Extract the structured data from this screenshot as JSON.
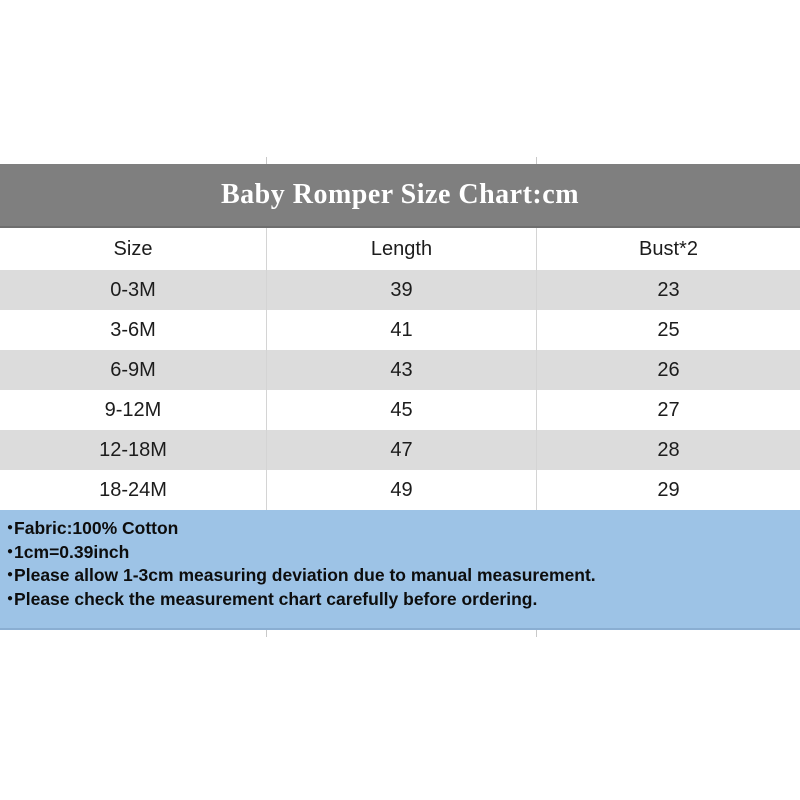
{
  "title": "Baby Romper Size Chart:cm",
  "table": {
    "columns": [
      "Size",
      "Length",
      "Bust*2"
    ],
    "rows": [
      [
        "0-3M",
        "39",
        "23"
      ],
      [
        "3-6M",
        "41",
        "25"
      ],
      [
        "6-9M",
        "43",
        "26"
      ],
      [
        "9-12M",
        "45",
        "27"
      ],
      [
        "12-18M",
        "47",
        "28"
      ],
      [
        "18-24M",
        "49",
        "29"
      ]
    ]
  },
  "notes": {
    "bullet": "●",
    "items": [
      "Fabric:100% Cotton",
      "1cm=0.39inch",
      "Please allow 1-3cm measuring deviation due to manual measurement.",
      "Please check the measurement chart carefully before ordering."
    ]
  },
  "colors": {
    "title_bar_bg": "#7f7f7f",
    "title_bar_border": "#6e6e6e",
    "title_text": "#ffffff",
    "row_bg": "#ffffff",
    "row_alt_bg": "#dcdcdc",
    "grid_line": "#d4d4d4",
    "text": "#1c1c1c",
    "notes_bg": "#9dc3e6",
    "notes_border": "#8aaed2"
  },
  "chart_data": {
    "type": "table",
    "title": "Baby Romper Size Chart:cm",
    "unit": "cm",
    "columns": [
      "Size",
      "Length",
      "Bust*2"
    ],
    "rows": [
      [
        "0-3M",
        39,
        23
      ],
      [
        "3-6M",
        41,
        25
      ],
      [
        "6-9M",
        43,
        26
      ],
      [
        "9-12M",
        45,
        27
      ],
      [
        "12-18M",
        47,
        28
      ],
      [
        "18-24M",
        49,
        29
      ]
    ],
    "footnotes": [
      "Fabric:100% Cotton",
      "1cm=0.39inch",
      "Please allow 1-3cm measuring deviation due to manual measurement.",
      "Please check the measurement chart carefully before ordering."
    ]
  }
}
